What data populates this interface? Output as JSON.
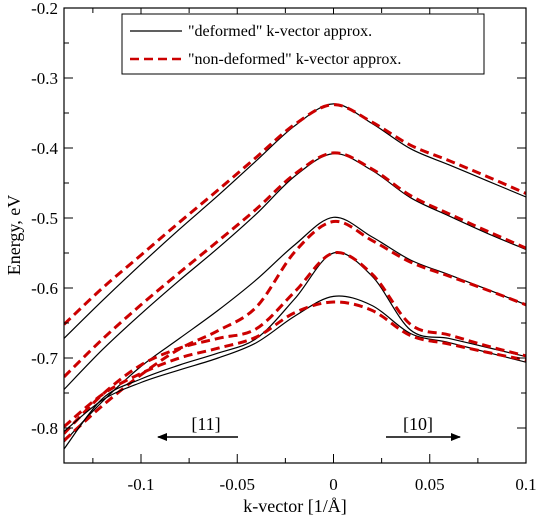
{
  "chart_data": {
    "type": "line",
    "xlabel": "k-vector [1/Å]",
    "ylabel": "Energy, eV",
    "xlim": [
      -0.14,
      0.1
    ],
    "ylim": [
      -0.85,
      -0.2
    ],
    "x_ticks": [
      -0.1,
      -0.05,
      0,
      0.05,
      0.1
    ],
    "x_tick_labels": [
      "-0.1",
      "-0.05",
      "0",
      "0.05",
      "0.1"
    ],
    "y_ticks": [
      -0.8,
      -0.7,
      -0.6,
      -0.5,
      -0.4,
      -0.3,
      -0.2
    ],
    "y_tick_labels": [
      "-0.8",
      "-0.7",
      "-0.6",
      "-0.5",
      "-0.4",
      "-0.3",
      "-0.2"
    ],
    "grid": false,
    "legend_position": "top-right",
    "legend": [
      {
        "label": "\"deformed\" k-vector approx.",
        "style": "solid",
        "color": "#000000"
      },
      {
        "label": "\"non-deformed\" k-vector approx.",
        "style": "dashed",
        "color": "#cc0000"
      }
    ],
    "annotations": [
      {
        "text": "[11]",
        "arrow": "left",
        "x": -0.07,
        "y": -0.825
      },
      {
        "text": "[10]",
        "arrow": "right",
        "x": 0.045,
        "y": -0.825
      }
    ],
    "x": [
      -0.14,
      -0.12,
      -0.1,
      -0.08,
      -0.06,
      -0.04,
      -0.02,
      0,
      0.02,
      0.04,
      0.06,
      0.08,
      0.1
    ],
    "series": [
      {
        "style": "solid",
        "color": "#000000",
        "values": [
          -0.672,
          -0.618,
          -0.566,
          -0.516,
          -0.468,
          -0.418,
          -0.368,
          -0.337,
          -0.365,
          -0.401,
          -0.424,
          -0.447,
          -0.47
        ]
      },
      {
        "style": "dashed",
        "color": "#cc0000",
        "values": [
          -0.652,
          -0.6,
          -0.553,
          -0.506,
          -0.46,
          -0.413,
          -0.366,
          -0.338,
          -0.363,
          -0.396,
          -0.418,
          -0.441,
          -0.465
        ]
      },
      {
        "style": "solid",
        "color": "#000000",
        "values": [
          -0.745,
          -0.688,
          -0.637,
          -0.589,
          -0.543,
          -0.494,
          -0.44,
          -0.408,
          -0.432,
          -0.471,
          -0.497,
          -0.522,
          -0.545
        ]
      },
      {
        "style": "dashed",
        "color": "#cc0000",
        "values": [
          -0.727,
          -0.673,
          -0.624,
          -0.578,
          -0.533,
          -0.487,
          -0.437,
          -0.407,
          -0.43,
          -0.468,
          -0.494,
          -0.519,
          -0.543
        ]
      },
      {
        "style": "solid",
        "color": "#000000",
        "values": [
          -0.82,
          -0.762,
          -0.712,
          -0.672,
          -0.632,
          -0.588,
          -0.538,
          -0.499,
          -0.527,
          -0.56,
          -0.581,
          -0.602,
          -0.624
        ]
      },
      {
        "style": "dashed",
        "color": "#cc0000",
        "values": [
          -0.818,
          -0.768,
          -0.724,
          -0.687,
          -0.661,
          -0.627,
          -0.548,
          -0.505,
          -0.532,
          -0.563,
          -0.583,
          -0.603,
          -0.624
        ]
      },
      {
        "style": "solid",
        "color": "#000000",
        "values": [
          -0.83,
          -0.758,
          -0.73,
          -0.71,
          -0.693,
          -0.672,
          -0.615,
          -0.55,
          -0.583,
          -0.66,
          -0.672,
          -0.685,
          -0.698
        ]
      },
      {
        "style": "dashed",
        "color": "#cc0000",
        "values": [
          -0.808,
          -0.752,
          -0.71,
          -0.686,
          -0.672,
          -0.658,
          -0.605,
          -0.55,
          -0.58,
          -0.652,
          -0.667,
          -0.683,
          -0.697
        ]
      },
      {
        "style": "solid",
        "color": "#000000",
        "values": [
          -0.805,
          -0.76,
          -0.735,
          -0.717,
          -0.7,
          -0.678,
          -0.64,
          -0.612,
          -0.625,
          -0.665,
          -0.678,
          -0.692,
          -0.706
        ]
      },
      {
        "style": "dashed",
        "color": "#cc0000",
        "values": [
          -0.798,
          -0.752,
          -0.722,
          -0.7,
          -0.686,
          -0.67,
          -0.635,
          -0.62,
          -0.632,
          -0.668,
          -0.68,
          -0.692,
          -0.703
        ]
      }
    ]
  }
}
